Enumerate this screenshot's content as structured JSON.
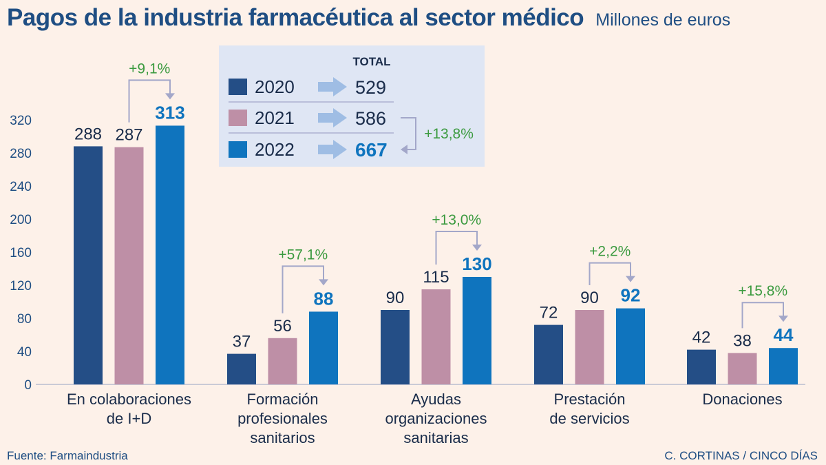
{
  "title": "Pagos de la industria farmacéutica al sector médico",
  "subtitle": "Millones de euros",
  "source": "Fuente: Farmaindustria",
  "credit": "C. CORTINAS / CINCO DÍAS",
  "chart_data": {
    "type": "bar",
    "categories": [
      [
        "En colaboraciones",
        "de I+D"
      ],
      [
        "Formación",
        "profesionales",
        "sanitarios"
      ],
      [
        "Ayudas",
        "organizaciones",
        "sanitarias"
      ],
      [
        "Prestación",
        "de servicios"
      ],
      [
        "Donaciones"
      ]
    ],
    "series": [
      {
        "name": "2020",
        "color": "#244e86",
        "values": [
          288,
          37,
          90,
          72,
          42
        ]
      },
      {
        "name": "2021",
        "color": "#be8fa6",
        "values": [
          287,
          56,
          115,
          90,
          38
        ]
      },
      {
        "name": "2022",
        "color": "#0f74be",
        "values": [
          313,
          88,
          130,
          92,
          44
        ]
      }
    ],
    "changes": [
      "+9,1%",
      "+57,1%",
      "+13,0%",
      "+2,2%",
      "+15,8%"
    ],
    "yticks": [
      0,
      40,
      80,
      120,
      160,
      200,
      240,
      280,
      320
    ],
    "ylim": [
      0,
      320
    ],
    "legend": {
      "header": "TOTAL",
      "totals": [
        529,
        586,
        667
      ],
      "change": "+13,8%"
    },
    "colors": {
      "axis_text": "#1f4e83",
      "change_text": "#3b9a3f",
      "arrow": "#a3a7c9",
      "legend_bg": "#dfe6f4",
      "highlight": "#0f74be"
    }
  }
}
